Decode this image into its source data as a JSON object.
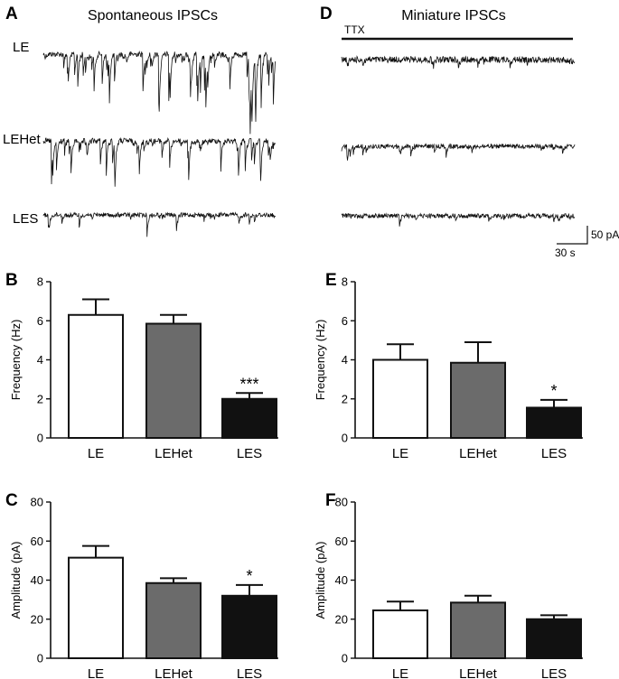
{
  "panels": {
    "A": {
      "letter": "A",
      "title": "Spontaneous IPSCs"
    },
    "D": {
      "letter": "D",
      "title": "Miniature IPSCs",
      "ttx_label": "TTX"
    }
  },
  "trace_labels": [
    "LE",
    "LEHet",
    "LES"
  ],
  "scale_bar": {
    "y_label": "50 pA",
    "x_label": "30 s"
  },
  "colors": {
    "LE": "#ffffff",
    "LEHet": "#6b6b6b",
    "LES": "#111111",
    "ink": "#111111"
  },
  "chart_data": [
    {
      "panel": "B",
      "type": "bar",
      "categories": [
        "LE",
        "LEHet",
        "LES"
      ],
      "values": [
        6.3,
        5.85,
        2.0
      ],
      "errors": [
        0.8,
        0.45,
        0.3
      ],
      "significance": [
        "",
        "",
        "***"
      ],
      "ylabel": "Frequency (Hz)",
      "ylim": [
        0,
        8
      ],
      "yticks": [
        0,
        2,
        4,
        6,
        8
      ]
    },
    {
      "panel": "E",
      "type": "bar",
      "categories": [
        "LE",
        "LEHet",
        "LES"
      ],
      "values": [
        4.0,
        3.85,
        1.55
      ],
      "errors": [
        0.8,
        1.05,
        0.4
      ],
      "significance": [
        "",
        "",
        "*"
      ],
      "ylabel": "Frequency (Hz)",
      "ylim": [
        0,
        8
      ],
      "yticks": [
        0,
        2,
        4,
        6,
        8
      ]
    },
    {
      "panel": "C",
      "type": "bar",
      "categories": [
        "LE",
        "LEHet",
        "LES"
      ],
      "values": [
        51.5,
        38.5,
        32.0
      ],
      "errors": [
        6.0,
        2.5,
        5.5
      ],
      "significance": [
        "",
        "",
        "*"
      ],
      "ylabel": "Amplitude (pA)",
      "ylim": [
        0,
        80
      ],
      "yticks": [
        0,
        20,
        40,
        60,
        80
      ]
    },
    {
      "panel": "F",
      "type": "bar",
      "categories": [
        "LE",
        "LEHet",
        "LES"
      ],
      "values": [
        24.5,
        28.5,
        20.0
      ],
      "errors": [
        4.5,
        3.5,
        2.0
      ],
      "significance": [
        "",
        "",
        ""
      ],
      "ylabel": "Amplitude (pA)",
      "ylim": [
        0,
        80
      ],
      "yticks": [
        0,
        20,
        40,
        60,
        80
      ]
    }
  ]
}
